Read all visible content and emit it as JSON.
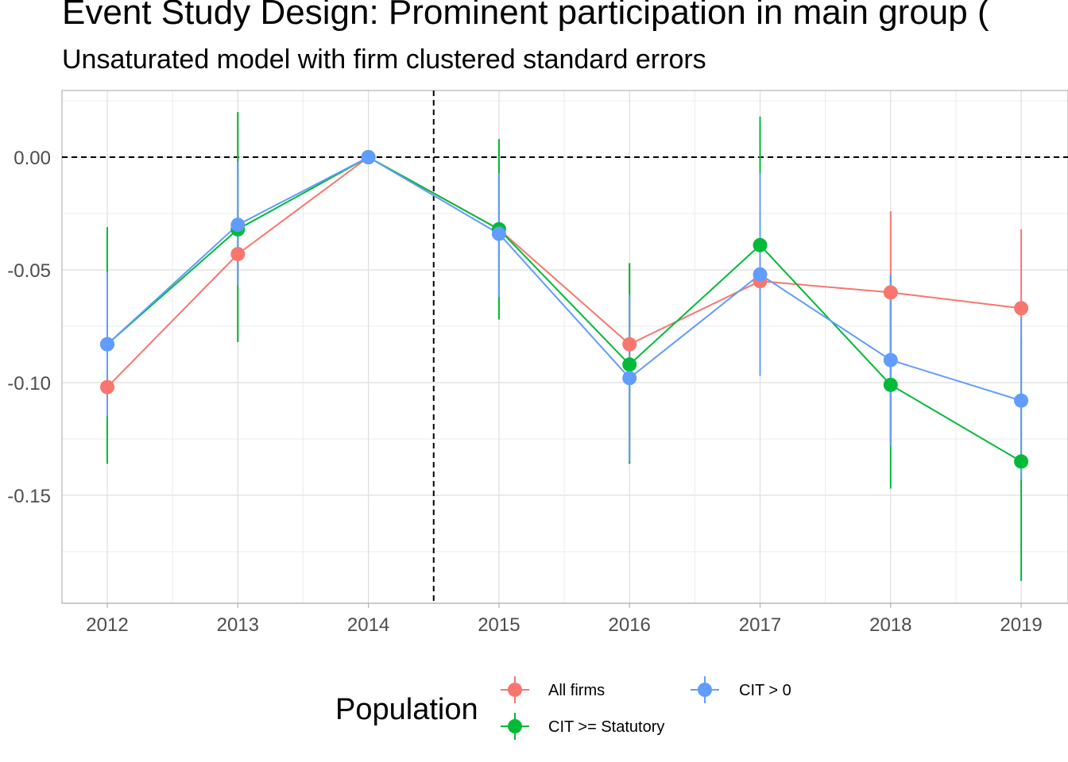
{
  "chart_data": {
    "type": "line",
    "title": "Event Study Design: Prominent participation in main group (",
    "subtitle": "Unsaturated model with firm clustered standard errors",
    "xlabel": "",
    "ylabel": "",
    "x": [
      "2012",
      "2013",
      "2014",
      "2015",
      "2016",
      "2017",
      "2018",
      "2019"
    ],
    "y_ticks": [
      "0.00",
      "-0.05",
      "-0.10",
      "-0.15"
    ],
    "y_tick_values": [
      0,
      -0.05,
      -0.1,
      -0.15
    ],
    "ylim": [
      -0.197,
      0.03
    ],
    "event_line_x": 2014.5,
    "zero_line": true,
    "grid": true,
    "legend": {
      "title": "Population",
      "position": "bottom"
    },
    "series": [
      {
        "name": "All firms",
        "color": "#F8766D",
        "values": [
          -0.102,
          -0.043,
          0.0,
          -0.032,
          -0.083,
          -0.055,
          -0.06,
          -0.067
        ],
        "ci_low": [
          -0.136,
          -0.082,
          0.0,
          -0.072,
          -0.136,
          -0.097,
          -0.128,
          -0.143
        ],
        "ci_high": [
          -0.031,
          0.02,
          0.0,
          0.008,
          -0.047,
          0.018,
          -0.024,
          -0.032
        ]
      },
      {
        "name": "CIT >= Statutory",
        "color": "#00BA38",
        "values": [
          -0.083,
          -0.032,
          0.0,
          -0.032,
          -0.092,
          -0.039,
          -0.101,
          -0.135
        ],
        "ci_low": [
          -0.136,
          -0.082,
          0.0,
          -0.072,
          -0.136,
          -0.097,
          -0.147,
          -0.188
        ],
        "ci_high": [
          -0.031,
          0.02,
          0.0,
          0.008,
          -0.047,
          0.018,
          -0.053,
          -0.08
        ]
      },
      {
        "name": "CIT > 0",
        "color": "#619CFF",
        "values": [
          -0.083,
          -0.03,
          0.0,
          -0.034,
          -0.098,
          -0.052,
          -0.09,
          -0.108
        ],
        "ci_low": [
          -0.115,
          -0.057,
          0.0,
          -0.062,
          -0.135,
          -0.097,
          -0.128,
          -0.143
        ],
        "ci_high": [
          -0.051,
          -0.002,
          0.0,
          -0.007,
          -0.061,
          -0.007,
          -0.052,
          -0.071
        ]
      }
    ]
  }
}
